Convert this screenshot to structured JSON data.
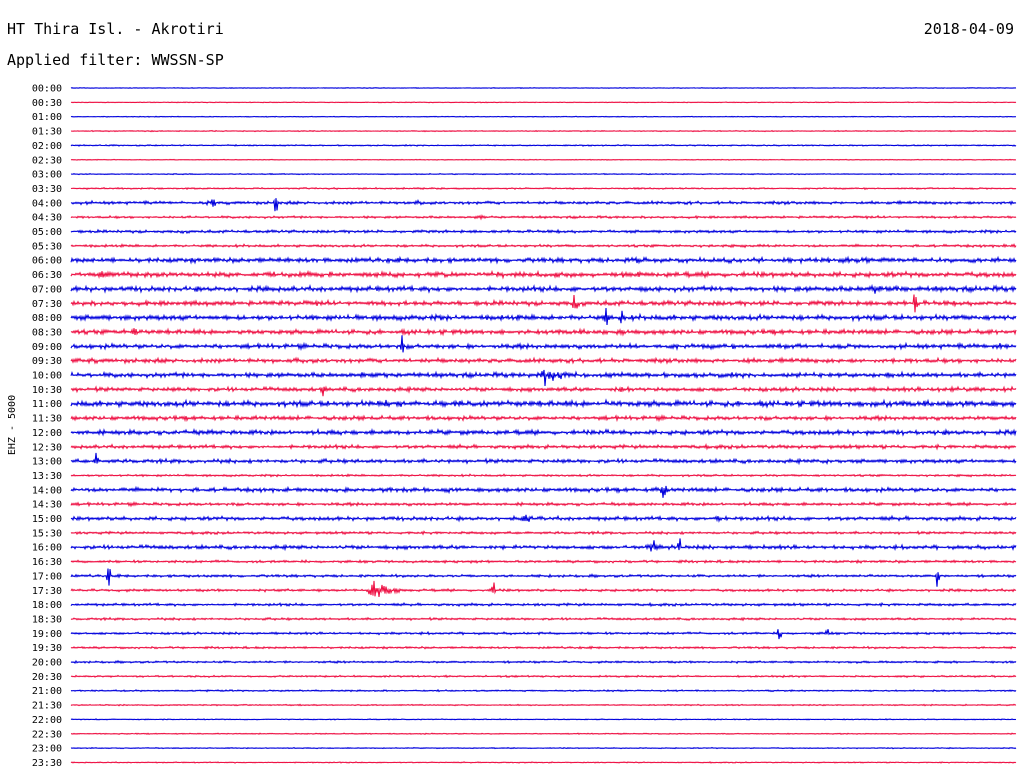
{
  "header": {
    "station": "HT Thira Isl. - Akrotiri",
    "date": "2018-04-09",
    "filter": "Applied filter: WWSSN-SP"
  },
  "chart_data": {
    "type": "line",
    "title": "HT Thira Isl. - Akrotiri",
    "ylabel": "EHZ - 5000",
    "trace_colors": [
      "#0000dd",
      "#ee1144"
    ],
    "row_labels": [
      "00:00",
      "00:30",
      "01:00",
      "01:30",
      "02:00",
      "02:30",
      "03:00",
      "03:30",
      "04:00",
      "04:30",
      "05:00",
      "05:30",
      "06:00",
      "06:30",
      "07:00",
      "07:30",
      "08:00",
      "08:30",
      "09:00",
      "09:30",
      "10:00",
      "10:30",
      "11:00",
      "11:30",
      "12:00",
      "12:30",
      "13:00",
      "13:30",
      "14:00",
      "14:30",
      "15:00",
      "15:30",
      "16:00",
      "16:30",
      "17:00",
      "17:30",
      "18:00",
      "18:30",
      "19:00",
      "19:30",
      "20:00",
      "20:30",
      "21:00",
      "21:30",
      "22:00",
      "22:30",
      "23:00",
      "23:30"
    ],
    "noise_levels": [
      0.3,
      0.3,
      0.3,
      0.4,
      0.5,
      0.3,
      0.4,
      0.6,
      1.2,
      0.9,
      1.1,
      1.0,
      1.8,
      2.0,
      2.0,
      1.8,
      2.0,
      1.8,
      1.8,
      1.7,
      1.8,
      1.6,
      2.2,
      1.6,
      1.8,
      1.4,
      1.5,
      0.8,
      1.6,
      1.2,
      1.5,
      1.0,
      1.5,
      1.0,
      1.0,
      1.0,
      1.0,
      0.9,
      0.9,
      0.8,
      0.8,
      0.7,
      0.6,
      0.5,
      0.4,
      0.4,
      0.4,
      0.4
    ],
    "events": [
      {
        "row": 8,
        "minute": 4.5,
        "amplitude": 6,
        "kind": "burst"
      },
      {
        "row": 8,
        "minute": 11,
        "amplitude": 4,
        "kind": "burst"
      },
      {
        "row": 8,
        "minute": 6.5,
        "amplitude": 16,
        "kind": "spike"
      },
      {
        "row": 9,
        "minute": 13,
        "amplitude": 3,
        "kind": "burst"
      },
      {
        "row": 11,
        "minute": 30,
        "amplitude": 3,
        "kind": "burst"
      },
      {
        "row": 12,
        "minute": 13,
        "amplitude": 3,
        "kind": "burst"
      },
      {
        "row": 12,
        "minute": 18,
        "amplitude": 5,
        "kind": "burst"
      },
      {
        "row": 13,
        "minute": 1,
        "amplitude": 6,
        "kind": "burst"
      },
      {
        "row": 13,
        "minute": 18,
        "amplitude": 3,
        "kind": "burst"
      },
      {
        "row": 14,
        "minute": 18,
        "amplitude": 3,
        "kind": "burst"
      },
      {
        "row": 14,
        "minute": 25.5,
        "amplitude": 8,
        "kind": "burst"
      },
      {
        "row": 14,
        "minute": 26.5,
        "amplitude": 4,
        "kind": "burst"
      },
      {
        "row": 15,
        "minute": 16,
        "amplitude": 16,
        "kind": "spike"
      },
      {
        "row": 15,
        "minute": 26.8,
        "amplitude": 16,
        "kind": "spike"
      },
      {
        "row": 16,
        "minute": 17,
        "amplitude": 14,
        "kind": "spike"
      },
      {
        "row": 16,
        "minute": 17.5,
        "amplitude": 10,
        "kind": "spike"
      },
      {
        "row": 17,
        "minute": 2,
        "amplitude": 6,
        "kind": "burst"
      },
      {
        "row": 17,
        "minute": 17.5,
        "amplitude": 5,
        "kind": "burst"
      },
      {
        "row": 18,
        "minute": 10.5,
        "amplitude": 14,
        "kind": "spike"
      },
      {
        "row": 18,
        "minute": 18,
        "amplitude": 3,
        "kind": "burst"
      },
      {
        "row": 18,
        "minute": 29.5,
        "amplitude": 6,
        "kind": "burst"
      },
      {
        "row": 19,
        "minute": 21.5,
        "amplitude": 4,
        "kind": "spike"
      },
      {
        "row": 20,
        "minute": 15,
        "amplitude": 16,
        "kind": "quake"
      },
      {
        "row": 20,
        "minute": 26,
        "amplitude": 4,
        "kind": "burst"
      },
      {
        "row": 21,
        "minute": 8,
        "amplitude": 8,
        "kind": "spike"
      },
      {
        "row": 21,
        "minute": 17.5,
        "amplitude": 5,
        "kind": "burst"
      },
      {
        "row": 21,
        "minute": 28,
        "amplitude": 4,
        "kind": "burst"
      },
      {
        "row": 22,
        "minute": 10,
        "amplitude": 5,
        "kind": "burst"
      },
      {
        "row": 22,
        "minute": 17,
        "amplitude": 5,
        "kind": "burst"
      },
      {
        "row": 22,
        "minute": 25.5,
        "amplitude": 5,
        "kind": "burst"
      },
      {
        "row": 24,
        "minute": 4.5,
        "amplitude": 4,
        "kind": "burst"
      },
      {
        "row": 24,
        "minute": 17,
        "amplitude": 3,
        "kind": "burst"
      },
      {
        "row": 24,
        "minute": 27,
        "amplitude": 3,
        "kind": "burst"
      },
      {
        "row": 26,
        "minute": 0.8,
        "amplitude": 10,
        "kind": "spike"
      },
      {
        "row": 26,
        "minute": 24,
        "amplitude": 4,
        "kind": "burst"
      },
      {
        "row": 28,
        "minute": 12,
        "amplitude": 5,
        "kind": "burst"
      },
      {
        "row": 28,
        "minute": 18.8,
        "amplitude": 10,
        "kind": "burst"
      },
      {
        "row": 30,
        "minute": 14.5,
        "amplitude": 8,
        "kind": "burst"
      },
      {
        "row": 30,
        "minute": 20.5,
        "amplitude": 5,
        "kind": "burst"
      },
      {
        "row": 32,
        "minute": 18.5,
        "amplitude": 10,
        "kind": "burst"
      },
      {
        "row": 32,
        "minute": 19.3,
        "amplitude": 14,
        "kind": "spike"
      },
      {
        "row": 34,
        "minute": 1.2,
        "amplitude": 12,
        "kind": "spike"
      },
      {
        "row": 34,
        "minute": 27.5,
        "amplitude": 12,
        "kind": "spike"
      },
      {
        "row": 35,
        "minute": 9.5,
        "amplitude": 16,
        "kind": "quake"
      },
      {
        "row": 35,
        "minute": 13.4,
        "amplitude": 12,
        "kind": "spike"
      },
      {
        "row": 38,
        "minute": 22.5,
        "amplitude": 10,
        "kind": "spike"
      },
      {
        "row": 38,
        "minute": 24,
        "amplitude": 8,
        "kind": "spike"
      }
    ]
  }
}
